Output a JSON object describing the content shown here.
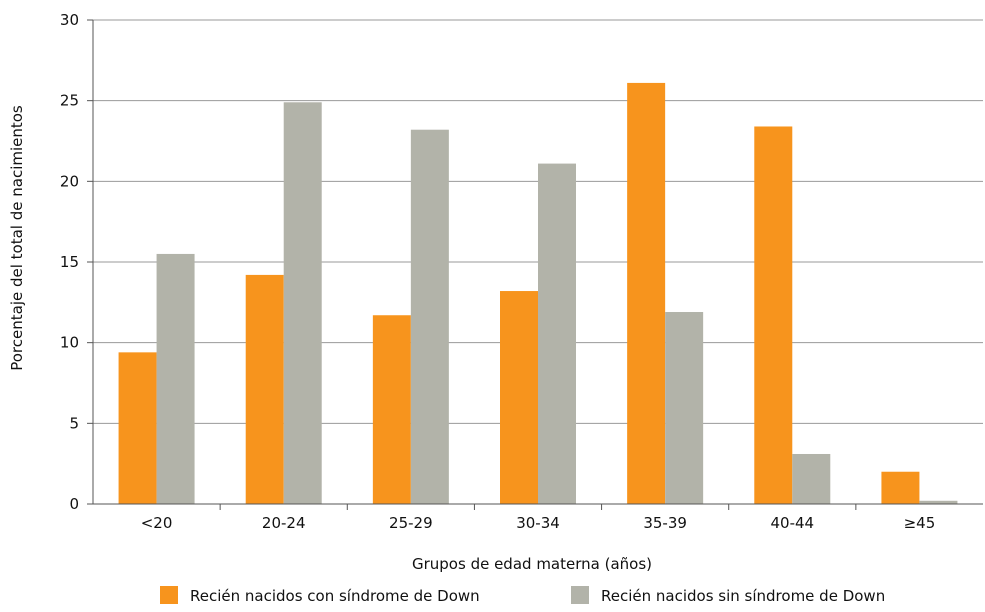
{
  "chart_data": {
    "type": "bar",
    "title": "",
    "xlabel": "Grupos de edad materna (años)",
    "ylabel": "Porcentaje del total de nacimientos",
    "ylim": [
      0,
      30
    ],
    "yticks": [
      "0",
      "5",
      "10",
      "15",
      "20",
      "25",
      "30"
    ],
    "categories": [
      "<20",
      "20-24",
      "25-29",
      "30-34",
      "35-39",
      "40-44",
      "≥45"
    ],
    "series": [
      {
        "name": "Recién nacidos con síndrome de Down",
        "color": "#f7941d",
        "values": [
          9.4,
          14.2,
          11.7,
          13.2,
          26.1,
          23.4,
          2.0
        ]
      },
      {
        "name": "Recién nacidos sin síndrome de Down",
        "color": "#b2b3a9",
        "values": [
          15.5,
          24.9,
          23.2,
          21.1,
          11.9,
          3.1,
          0.2
        ]
      }
    ],
    "grid": true,
    "legend_position": "bottom"
  }
}
